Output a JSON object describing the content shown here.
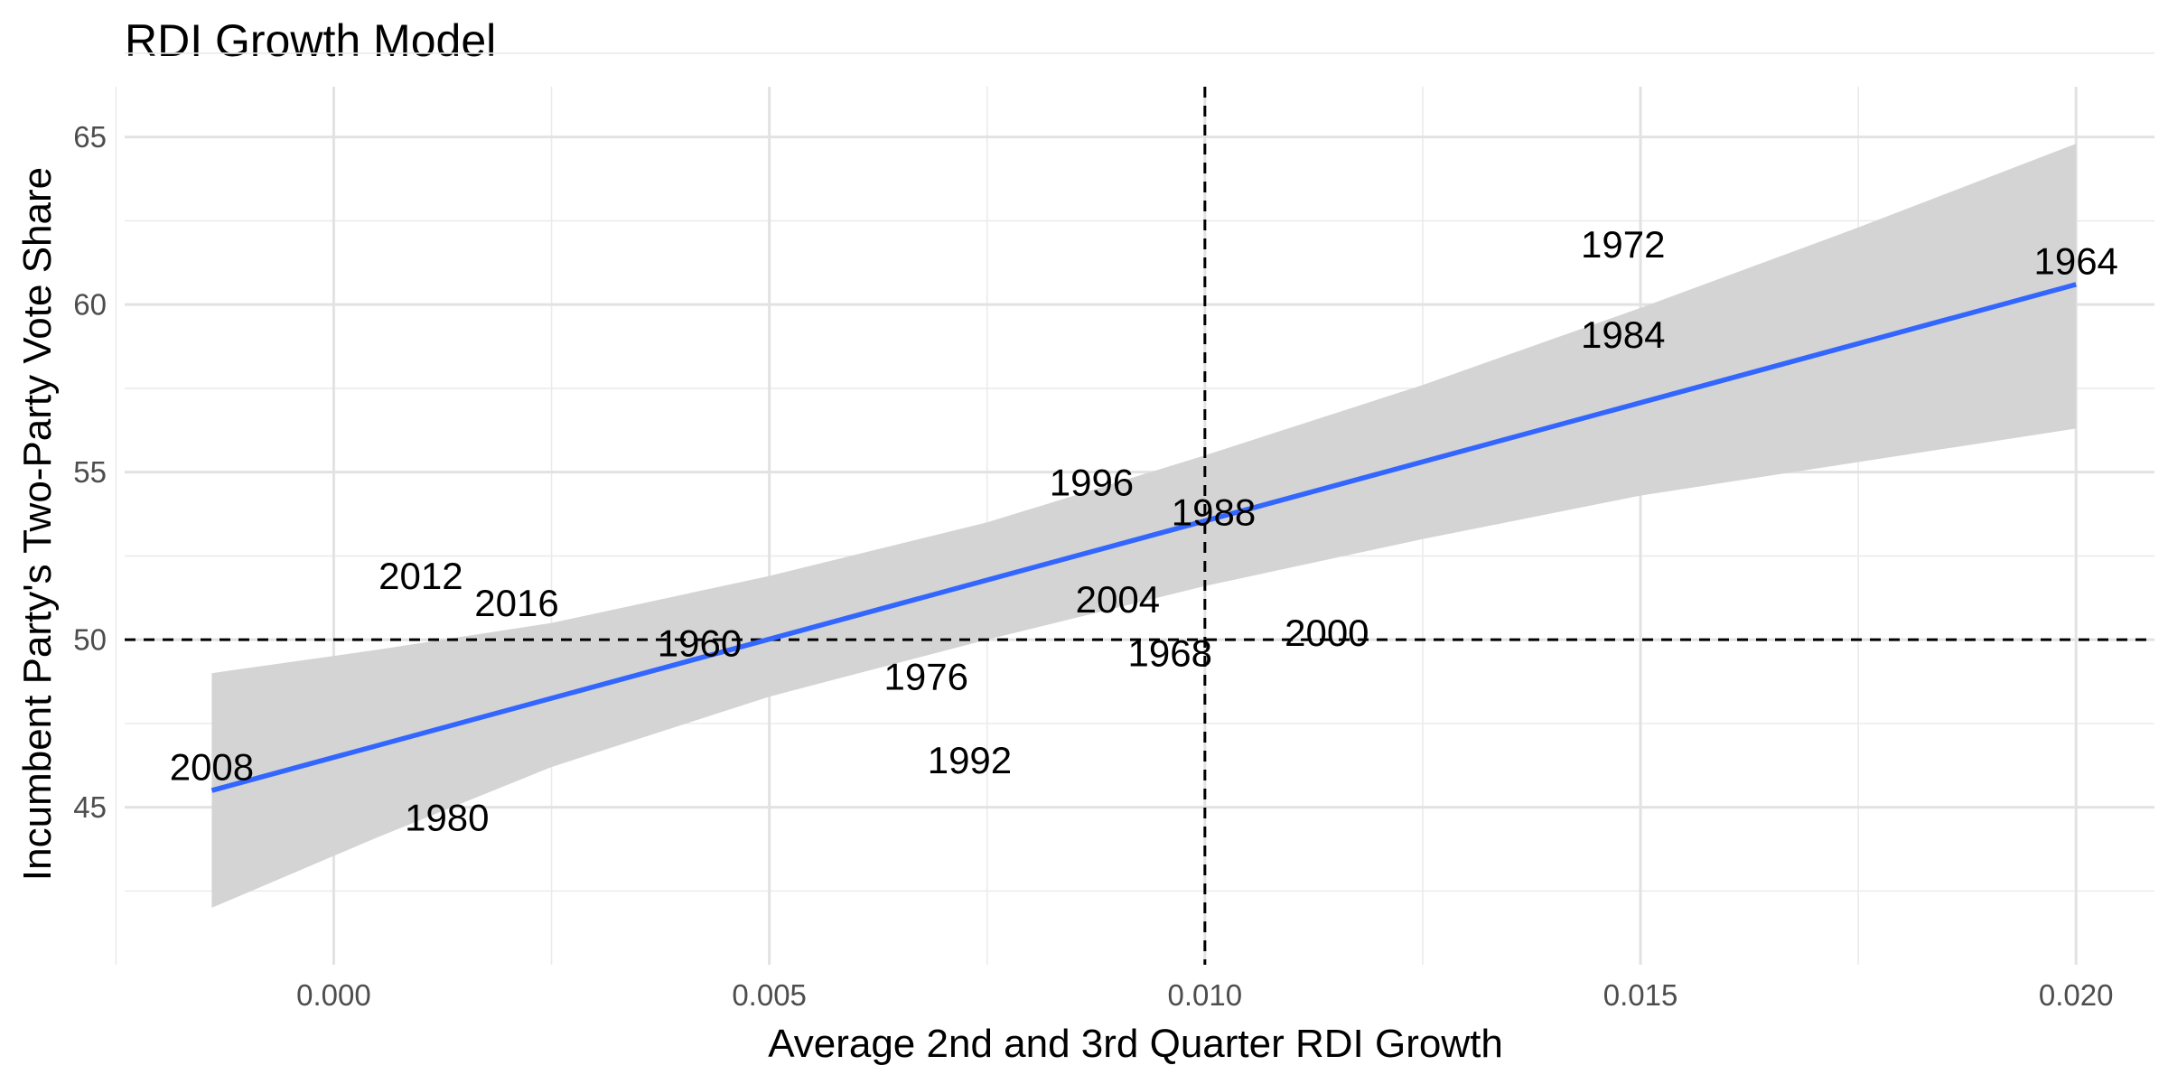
{
  "chart_data": {
    "type": "scatter",
    "title": "RDI Growth Model",
    "xlabel": "Average 2nd and 3rd Quarter RDI Growth",
    "ylabel": "Incumbent Party's Two-Party Vote Share",
    "xlim": [
      -0.0024,
      0.0209
    ],
    "ylim": [
      40.3,
      66.5
    ],
    "x_ticks": [
      0.0,
      0.005,
      0.01,
      0.015,
      0.02
    ],
    "x_tick_labels": [
      "0.000",
      "0.005",
      "0.010",
      "0.015",
      "0.020"
    ],
    "y_ticks": [
      45,
      50,
      55,
      60,
      65
    ],
    "y_tick_labels": [
      "45",
      "50",
      "55",
      "60",
      "65"
    ],
    "grid": true,
    "points": [
      {
        "label": "1960",
        "x": 0.0042,
        "y": 49.9
      },
      {
        "label": "1964",
        "x": 0.02,
        "y": 61.3
      },
      {
        "label": "1968",
        "x": 0.0096,
        "y": 49.6
      },
      {
        "label": "1972",
        "x": 0.0148,
        "y": 61.8
      },
      {
        "label": "1976",
        "x": 0.0068,
        "y": 48.9
      },
      {
        "label": "1980",
        "x": 0.0013,
        "y": 44.7
      },
      {
        "label": "1984",
        "x": 0.0148,
        "y": 59.1
      },
      {
        "label": "1988",
        "x": 0.0101,
        "y": 53.8
      },
      {
        "label": "1992",
        "x": 0.0073,
        "y": 46.4
      },
      {
        "label": "1996",
        "x": 0.0087,
        "y": 54.7
      },
      {
        "label": "2000",
        "x": 0.0114,
        "y": 50.2
      },
      {
        "label": "2004",
        "x": 0.009,
        "y": 51.2
      },
      {
        "label": "2008",
        "x": -0.0014,
        "y": 46.2
      },
      {
        "label": "2012",
        "x": 0.001,
        "y": 51.9
      },
      {
        "label": "2016",
        "x": 0.0021,
        "y": 51.1
      }
    ],
    "fit_line": {
      "x": [
        -0.0014,
        0.02
      ],
      "y": [
        45.5,
        60.6
      ],
      "color": "#3366ff"
    },
    "confidence_band": {
      "x": [
        -0.0014,
        0.0005,
        0.0025,
        0.005,
        0.0075,
        0.01,
        0.0125,
        0.015,
        0.0175,
        0.02
      ],
      "lower": [
        42.0,
        44.1,
        46.2,
        48.3,
        50.0,
        51.6,
        53.0,
        54.3,
        55.3,
        56.3
      ],
      "upper": [
        49.0,
        49.7,
        50.5,
        51.9,
        53.5,
        55.5,
        57.6,
        59.9,
        62.3,
        64.8
      ],
      "color": "#d4d4d4"
    },
    "reference_lines": [
      {
        "axis": "x",
        "value": 0.01,
        "style": "dashed"
      },
      {
        "axis": "y",
        "value": 50,
        "style": "dashed"
      }
    ]
  }
}
